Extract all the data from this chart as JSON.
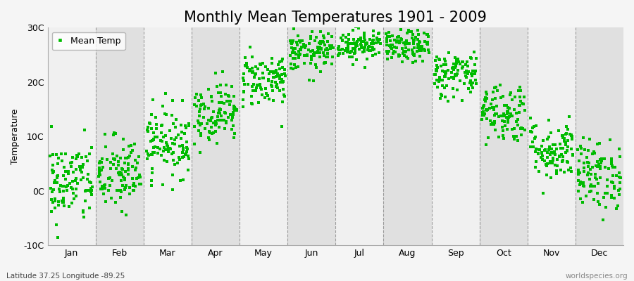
{
  "title": "Monthly Mean Temperatures 1901 - 2009",
  "ylabel": "Temperature",
  "xlabel_labels": [
    "Jan",
    "Feb",
    "Mar",
    "Apr",
    "May",
    "Jun",
    "Jul",
    "Aug",
    "Sep",
    "Oct",
    "Nov",
    "Dec"
  ],
  "subtitle": "Latitude 37.25 Longitude -89.25",
  "watermark": "worldspecies.org",
  "legend_label": "Mean Temp",
  "dot_color": "#00BB00",
  "dot_size": 6,
  "bg_light": "#F0F0F0",
  "bg_dark": "#E0E0E0",
  "fig_bg": "#F5F5F5",
  "ylim": [
    -10,
    30
  ],
  "yticks": [
    -10,
    0,
    10,
    20,
    30
  ],
  "ytick_labels": [
    "-10C",
    "0C",
    "10C",
    "20C",
    "30C"
  ],
  "title_fontsize": 15,
  "monthly_means": [
    1.5,
    3.0,
    9.0,
    14.5,
    20.5,
    25.5,
    27.0,
    26.5,
    21.5,
    14.5,
    7.5,
    3.0
  ],
  "monthly_stds": [
    3.8,
    3.5,
    3.2,
    2.8,
    2.5,
    1.8,
    1.5,
    1.5,
    2.2,
    2.8,
    2.8,
    3.2
  ],
  "n_years": 109,
  "seed": 42
}
